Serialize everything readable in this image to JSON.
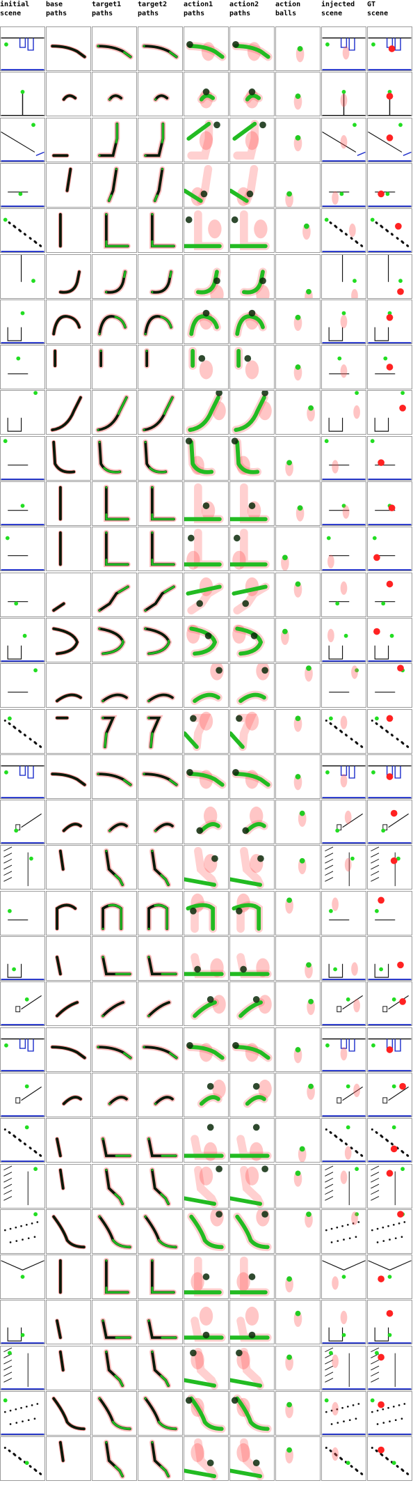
{
  "columns": [
    {
      "key": "initial",
      "label": "initial\nscene"
    },
    {
      "key": "base",
      "label": "base\npaths"
    },
    {
      "key": "target1",
      "label": "target1\npaths"
    },
    {
      "key": "target2",
      "label": "target2\npaths"
    },
    {
      "key": "action1",
      "label": "action1\npaths"
    },
    {
      "key": "action2",
      "label": "action2\npaths"
    },
    {
      "key": "balls",
      "label": "action\nballs"
    },
    {
      "key": "injected",
      "label": "injected\nscene"
    },
    {
      "key": "gt",
      "label": "GT\nscene"
    }
  ],
  "rows": [
    {
      "scene": "ramp-cup",
      "blue": true,
      "ball": [
        0.12,
        0.4
      ],
      "red": [
        0.55,
        0.5
      ],
      "path": "curve-right"
    },
    {
      "scene": "big-green-stick",
      "blue": false,
      "ball": [
        0.5,
        0.45
      ],
      "red": [
        0.5,
        0.55
      ],
      "path": "blob-center"
    },
    {
      "scene": "diagonal-line",
      "blue": true,
      "ball": [
        0.75,
        0.15
      ],
      "red": [
        0.5,
        0.45
      ],
      "path": "L-up"
    },
    {
      "scene": "ground-black-ball",
      "blue": true,
      "ball": [
        0.45,
        0.7
      ],
      "red": [
        0.3,
        0.7
      ],
      "path": "L-down"
    },
    {
      "scene": "sparse-dots",
      "blue": true,
      "ball": [
        0.1,
        0.25
      ],
      "red": [
        0.7,
        0.4
      ],
      "path": "L-corner"
    },
    {
      "scene": "vertical-wall",
      "blue": false,
      "ball": [
        0.75,
        0.6
      ],
      "red": [
        0.75,
        0.85
      ],
      "path": "U-curve"
    },
    {
      "scene": "cup-blue",
      "blue": true,
      "ball": [
        0.5,
        0.3
      ],
      "red": [
        0.5,
        0.4
      ],
      "path": "arch"
    },
    {
      "scene": "bar-row",
      "blue": false,
      "ball": [
        0.4,
        0.3
      ],
      "red": [
        0.5,
        0.5
      ],
      "path": "short-stroke"
    },
    {
      "scene": "right-cup",
      "blue": false,
      "ball": [
        0.8,
        0.05
      ],
      "red": [
        0.8,
        0.4
      ],
      "path": "rise-right"
    },
    {
      "scene": "left-ledge",
      "blue": true,
      "ball": [
        0.1,
        0.1
      ],
      "red": [
        0.3,
        0.6
      ],
      "path": "dip-curve"
    },
    {
      "scene": "tee-bar",
      "blue": true,
      "ball": [
        0.5,
        0.55
      ],
      "red": [
        0.55,
        0.6
      ],
      "path": "L-corner"
    },
    {
      "scene": "black-ball-top",
      "blue": true,
      "ball": [
        0.15,
        0.25
      ],
      "red": [
        0.2,
        0.7
      ],
      "path": "L-corner"
    },
    {
      "scene": "green-bump",
      "blue": false,
      "ball": [
        0.35,
        0.7
      ],
      "red": [
        0.5,
        0.25
      ],
      "path": "step-diag"
    },
    {
      "scene": "ramp-blue-cup",
      "blue": true,
      "ball": [
        0.55,
        0.4
      ],
      "red": [
        0.2,
        0.3
      ],
      "path": "hook"
    },
    {
      "scene": "big-green-ball",
      "blue": false,
      "ball": [
        0.8,
        0.15
      ],
      "red": [
        0.75,
        0.1
      ],
      "path": "blob-bottom"
    },
    {
      "scene": "scattered-dots",
      "blue": false,
      "ball": [
        0.2,
        0.2
      ],
      "red": [
        0.5,
        0.2
      ],
      "path": "curve-up"
    },
    {
      "scene": "ramp-cup",
      "blue": true,
      "ball": [
        0.12,
        0.4
      ],
      "red": [
        0.5,
        0.5
      ],
      "path": "curve-right"
    },
    {
      "scene": "slope-box",
      "blue": true,
      "ball": [
        0.35,
        0.7
      ],
      "red": [
        0.6,
        0.3
      ],
      "path": "blob-right"
    },
    {
      "scene": "hatched-wall",
      "blue": false,
      "ball": [
        0.7,
        0.3
      ],
      "red": [
        0.6,
        0.35
      ],
      "path": "stroke-down"
    },
    {
      "scene": "green-peg",
      "blue": false,
      "ball": [
        0.2,
        0.45
      ],
      "red": [
        0.3,
        0.2
      ],
      "path": "green-arch"
    },
    {
      "scene": "blue-frame",
      "blue": true,
      "ball": [
        0.3,
        0.75
      ],
      "red": [
        0.75,
        0.65
      ],
      "path": "L-right"
    },
    {
      "scene": "slope-box",
      "blue": true,
      "ball": [
        0.6,
        0.4
      ],
      "red": [
        0.8,
        0.45
      ],
      "path": "blob-diag"
    },
    {
      "scene": "ramp-cup",
      "blue": true,
      "ball": [
        0.12,
        0.4
      ],
      "red": [
        0.5,
        0.5
      ],
      "path": "curve-right"
    },
    {
      "scene": "slope-box",
      "blue": true,
      "ball": [
        0.6,
        0.3
      ],
      "red": [
        0.8,
        0.3
      ],
      "path": "blob-right"
    },
    {
      "scene": "sparse-dots",
      "blue": true,
      "ball": [
        0.6,
        0.2
      ],
      "red": [
        0.6,
        0.7
      ],
      "path": "L-right"
    },
    {
      "scene": "hatched-wall",
      "blue": false,
      "ball": [
        0.8,
        0.1
      ],
      "red": [
        0.5,
        0.2
      ],
      "path": "stroke-down"
    },
    {
      "scene": "dot-line",
      "blue": false,
      "ball": [
        0.8,
        0.1
      ],
      "red": [
        0.75,
        0.1
      ],
      "path": "wave"
    },
    {
      "scene": "v-ramp",
      "blue": false,
      "ball": [
        0.5,
        0.5
      ],
      "red": [
        0.3,
        0.55
      ],
      "path": "L-corner"
    },
    {
      "scene": "blue-frame",
      "blue": true,
      "ball": [
        0.5,
        0.8
      ],
      "red": [
        0.5,
        0.3
      ],
      "path": "L-right"
    },
    {
      "scene": "hatched-wall",
      "blue": true,
      "ball": [
        0.2,
        0.15
      ],
      "red": [
        0.3,
        0.25
      ],
      "path": "stroke-down"
    },
    {
      "scene": "dot-line",
      "blue": true,
      "ball": [
        0.1,
        0.2
      ],
      "red": [
        0.3,
        0.3
      ],
      "path": "wave"
    },
    {
      "scene": "scattered-dots",
      "blue": false,
      "ball": [
        0.6,
        0.6
      ],
      "red": [
        0.3,
        0.3
      ],
      "path": "stroke-down"
    }
  ]
}
